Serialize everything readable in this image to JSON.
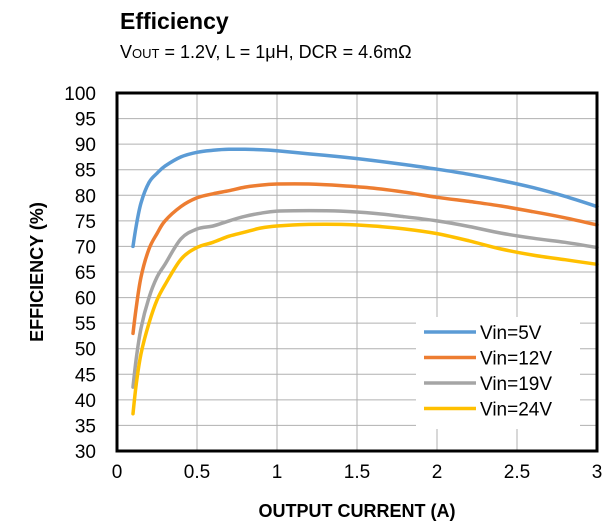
{
  "chart_data": {
    "type": "line",
    "title": "Efficiency",
    "subtitle": {
      "prefix": "V",
      "subscript": "OUT",
      "rest": " = 1.2V, L = 1μH, DCR = 4.6mΩ"
    },
    "xlabel": "OUTPUT  CURRENT  (A)",
    "ylabel": "EFFICIENCY  (%)",
    "xlim": [
      0,
      3
    ],
    "ylim": [
      30,
      100
    ],
    "x_ticks": [
      "0",
      "0.5",
      "1",
      "1.5",
      "2",
      "2.5",
      "3"
    ],
    "y_ticks": [
      "30",
      "35",
      "40",
      "45",
      "50",
      "55",
      "60",
      "65",
      "70",
      "75",
      "80",
      "85",
      "90",
      "95",
      "100"
    ],
    "grid": true,
    "legend_position": "bottom-right",
    "series": [
      {
        "name": "Vin=5V",
        "color": "#5B9BD5",
        "points": [
          [
            0.1,
            70
          ],
          [
            0.12,
            74
          ],
          [
            0.15,
            78.5
          ],
          [
            0.2,
            82.5
          ],
          [
            0.25,
            84.3
          ],
          [
            0.3,
            85.7
          ],
          [
            0.4,
            87.5
          ],
          [
            0.5,
            88.4
          ],
          [
            0.6,
            88.8
          ],
          [
            0.7,
            89
          ],
          [
            0.8,
            89
          ],
          [
            0.9,
            88.9
          ],
          [
            1,
            88.7
          ],
          [
            1.2,
            88.1
          ],
          [
            1.4,
            87.5
          ],
          [
            1.6,
            86.8
          ],
          [
            1.8,
            86
          ],
          [
            2,
            85.1
          ],
          [
            2.2,
            84.1
          ],
          [
            2.4,
            82.9
          ],
          [
            2.6,
            81.5
          ],
          [
            2.8,
            79.8
          ],
          [
            3,
            77.8
          ]
        ]
      },
      {
        "name": "Vin=12V",
        "color": "#ED7D31",
        "points": [
          [
            0.1,
            53
          ],
          [
            0.12,
            58
          ],
          [
            0.15,
            64
          ],
          [
            0.2,
            69.5
          ],
          [
            0.25,
            72.5
          ],
          [
            0.3,
            75
          ],
          [
            0.4,
            77.8
          ],
          [
            0.5,
            79.5
          ],
          [
            0.6,
            80.3
          ],
          [
            0.7,
            80.9
          ],
          [
            0.8,
            81.6
          ],
          [
            0.9,
            82
          ],
          [
            1,
            82.2
          ],
          [
            1.2,
            82.2
          ],
          [
            1.4,
            81.9
          ],
          [
            1.6,
            81.4
          ],
          [
            1.8,
            80.6
          ],
          [
            2,
            79.6
          ],
          [
            2.2,
            78.8
          ],
          [
            2.4,
            77.9
          ],
          [
            2.6,
            76.8
          ],
          [
            2.8,
            75.6
          ],
          [
            3,
            74.2
          ]
        ]
      },
      {
        "name": "Vin=19V",
        "color": "#A5A5A5",
        "points": [
          [
            0.1,
            42.5
          ],
          [
            0.12,
            48
          ],
          [
            0.15,
            54
          ],
          [
            0.2,
            60
          ],
          [
            0.25,
            64
          ],
          [
            0.3,
            66.5
          ],
          [
            0.4,
            71.5
          ],
          [
            0.5,
            73.4
          ],
          [
            0.6,
            74
          ],
          [
            0.7,
            75
          ],
          [
            0.8,
            75.9
          ],
          [
            0.9,
            76.5
          ],
          [
            1,
            76.9
          ],
          [
            1.2,
            77
          ],
          [
            1.4,
            76.9
          ],
          [
            1.6,
            76.5
          ],
          [
            1.8,
            75.8
          ],
          [
            2,
            75
          ],
          [
            2.2,
            73.9
          ],
          [
            2.4,
            72.6
          ],
          [
            2.6,
            71.6
          ],
          [
            2.8,
            70.8
          ],
          [
            3,
            69.8
          ]
        ]
      },
      {
        "name": "Vin=24V",
        "color": "#FFC000",
        "points": [
          [
            0.1,
            37.3
          ],
          [
            0.12,
            43
          ],
          [
            0.15,
            49
          ],
          [
            0.2,
            55
          ],
          [
            0.25,
            59.5
          ],
          [
            0.3,
            62.5
          ],
          [
            0.4,
            67.5
          ],
          [
            0.5,
            69.8
          ],
          [
            0.6,
            70.8
          ],
          [
            0.7,
            72
          ],
          [
            0.8,
            72.8
          ],
          [
            0.9,
            73.6
          ],
          [
            1,
            74
          ],
          [
            1.2,
            74.3
          ],
          [
            1.4,
            74.3
          ],
          [
            1.6,
            74
          ],
          [
            1.8,
            73.4
          ],
          [
            2,
            72.5
          ],
          [
            2.2,
            71.1
          ],
          [
            2.4,
            69.5
          ],
          [
            2.6,
            68.3
          ],
          [
            2.8,
            67.4
          ],
          [
            3,
            66.5
          ]
        ]
      }
    ]
  }
}
